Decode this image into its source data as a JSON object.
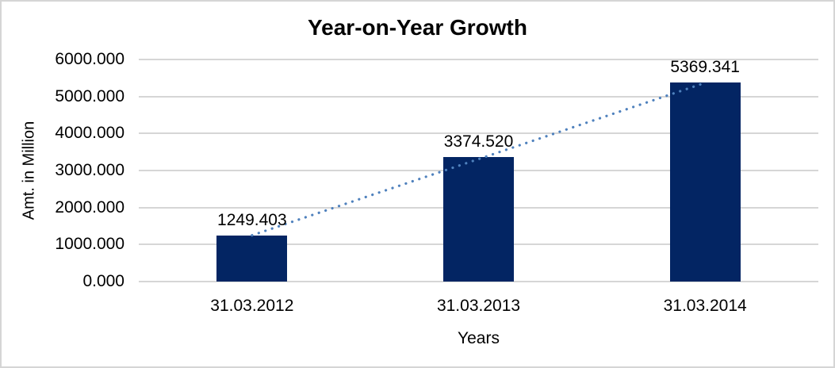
{
  "frame": {
    "background": "#ffffff",
    "border_color": "#d5d5d5"
  },
  "chart_data": {
    "type": "bar",
    "title": "Year-on-Year Growth",
    "xlabel": "Years",
    "ylabel": "Amt. in Million",
    "categories": [
      "31.03.2012",
      "31.03.2013",
      "31.03.2014"
    ],
    "values": [
      1249.403,
      3374.52,
      5369.341
    ],
    "data_labels": [
      "1249.403",
      "3374.520",
      "5369.341"
    ],
    "y_ticks": [
      {
        "value": 0,
        "label": "0.000"
      },
      {
        "value": 1000,
        "label": "1000.000"
      },
      {
        "value": 2000,
        "label": "2000.000"
      },
      {
        "value": 3000,
        "label": "3000.000"
      },
      {
        "value": 4000,
        "label": "4000.000"
      },
      {
        "value": 5000,
        "label": "5000.000"
      },
      {
        "value": 6000,
        "label": "6000.000"
      }
    ],
    "ylim": [
      0,
      6000
    ],
    "grid": true,
    "legend": "none",
    "trendline": {
      "style": "dotted",
      "from_category": 0,
      "to_category": 2
    },
    "colors": {
      "bar": "#032563",
      "trendline": "#4f81bd",
      "gridline": "#d6d6d6",
      "text": "#000000"
    }
  }
}
